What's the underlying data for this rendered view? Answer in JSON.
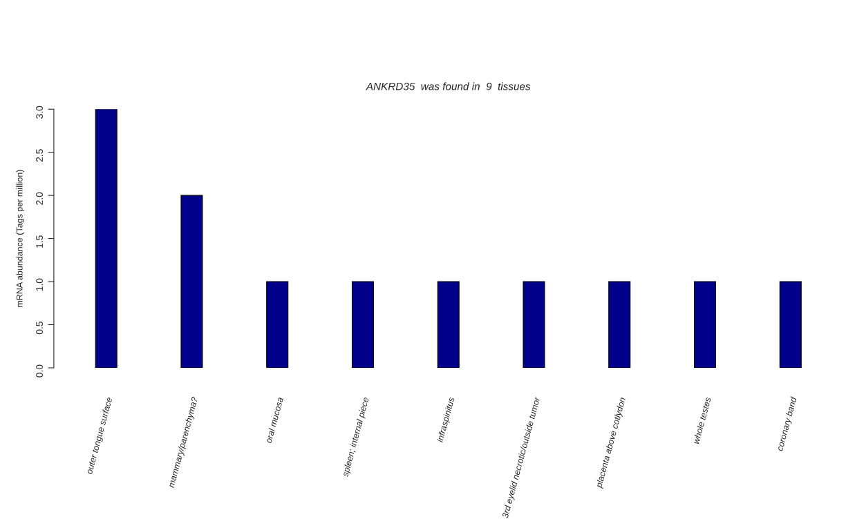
{
  "chart_data": {
    "type": "bar",
    "title": "ANKRD35  was found in  9  tissues",
    "ylabel": "mRNA abundance (Tags per million)",
    "categories": [
      "outer tongue surface",
      "mammary/parenchyma?",
      "oral mucosa",
      "spleen; internal piece",
      "infraspinitus",
      "3rd eyelid necrotic/outside tumor",
      "placenta above cotlydon",
      "whole testes",
      "coronary band"
    ],
    "values": [
      3,
      2,
      1,
      1,
      1,
      1,
      1,
      1,
      1
    ],
    "color": "#00008b",
    "ylim": [
      0,
      3
    ],
    "yticks": [
      {
        "value": 0,
        "label": "0.0"
      },
      {
        "value": 0.5,
        "label": "0.5"
      },
      {
        "value": 1,
        "label": "1.0"
      },
      {
        "value": 1.5,
        "label": "1.5"
      },
      {
        "value": 2,
        "label": "2.0"
      },
      {
        "value": 2.5,
        "label": "2.5"
      },
      {
        "value": 3,
        "label": "3.0"
      }
    ],
    "grid": false
  }
}
